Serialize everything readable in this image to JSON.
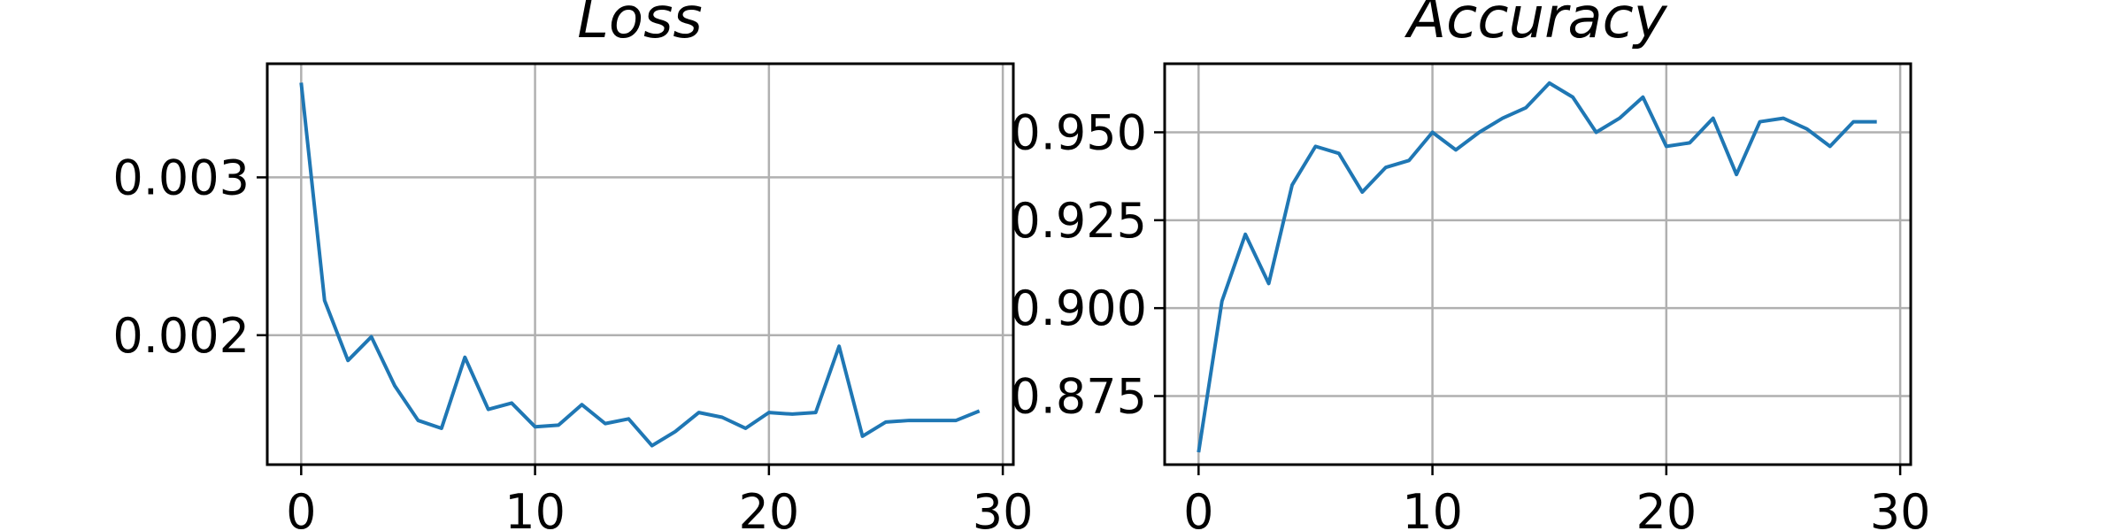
{
  "chart_data": [
    {
      "type": "line",
      "title": "Loss",
      "xlabel": "",
      "ylabel": "",
      "xlim": [
        -1.45,
        30.45
      ],
      "ylim": [
        0.00118,
        0.00372
      ],
      "xticks": [
        0,
        10,
        20,
        30
      ],
      "xtick_labels": [
        "0",
        "10",
        "20",
        "30"
      ],
      "yticks": [
        0.002,
        0.003
      ],
      "ytick_labels": [
        "0.002",
        "0.003"
      ],
      "grid": true,
      "color": "#1f77b4",
      "series": [
        {
          "x": [
            0,
            1,
            2,
            3,
            4,
            5,
            6,
            7,
            8,
            9,
            10,
            11,
            12,
            13,
            14,
            15,
            16,
            17,
            18,
            19,
            20,
            21,
            22,
            23,
            24,
            25,
            26,
            27,
            28,
            29
          ],
          "values": [
            0.0036,
            0.00222,
            0.00184,
            0.00199,
            0.00168,
            0.00146,
            0.00141,
            0.00186,
            0.00153,
            0.00157,
            0.00142,
            0.00143,
            0.00156,
            0.00144,
            0.00147,
            0.0013,
            0.00139,
            0.00151,
            0.00148,
            0.00141,
            0.00151,
            0.0015,
            0.00151,
            0.00193,
            0.00136,
            0.00145,
            0.00146,
            0.00146,
            0.00146,
            0.00152
          ]
        }
      ]
    },
    {
      "type": "line",
      "title": "Accuracy",
      "xlabel": "",
      "ylabel": "",
      "xlim": [
        -1.45,
        30.45
      ],
      "ylim": [
        0.8555,
        0.9695
      ],
      "xticks": [
        0,
        10,
        20,
        30
      ],
      "xtick_labels": [
        "0",
        "10",
        "20",
        "30"
      ],
      "yticks": [
        0.875,
        0.9,
        0.925,
        0.95
      ],
      "ytick_labels": [
        "0.875",
        "0.900",
        "0.925",
        "0.950"
      ],
      "grid": true,
      "color": "#1f77b4",
      "series": [
        {
          "x": [
            0,
            1,
            2,
            3,
            4,
            5,
            6,
            7,
            8,
            9,
            10,
            11,
            12,
            13,
            14,
            15,
            16,
            17,
            18,
            19,
            20,
            21,
            22,
            23,
            24,
            25,
            26,
            27,
            28,
            29
          ],
          "values": [
            0.859,
            0.902,
            0.921,
            0.907,
            0.935,
            0.946,
            0.944,
            0.933,
            0.94,
            0.942,
            0.95,
            0.945,
            0.95,
            0.954,
            0.957,
            0.964,
            0.96,
            0.95,
            0.954,
            0.96,
            0.946,
            0.947,
            0.954,
            0.938,
            0.953,
            0.954,
            0.951,
            0.946,
            0.953,
            0.953
          ]
        }
      ]
    }
  ]
}
